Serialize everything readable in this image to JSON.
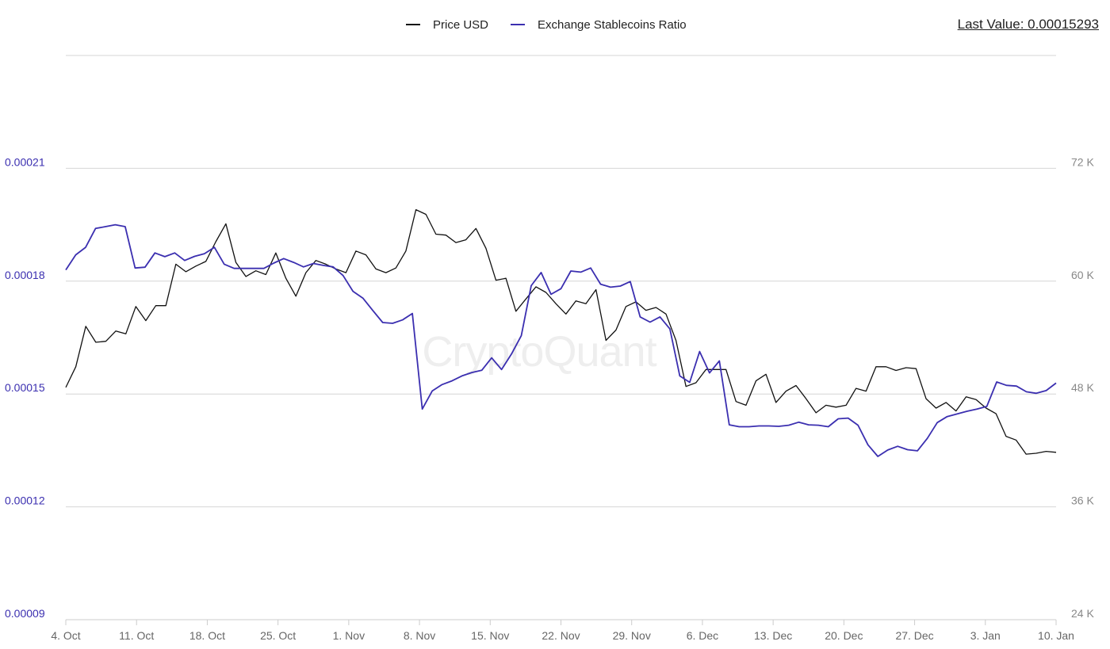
{
  "legend": {
    "price_label": "Price USD",
    "ratio_label": "Exchange Stablecoins Ratio"
  },
  "last_value": {
    "prefix": "Last Value: ",
    "value": "0.00015293"
  },
  "watermark": "CryptoQuant",
  "colors": {
    "price": "#111111",
    "ratio": "#3b2fb0",
    "left_axis_text": "#3b2fb0",
    "right_axis_text": "#888888",
    "grid": "#d6d6d6"
  },
  "chart_data": {
    "type": "line",
    "x_ticks": [
      "4. Oct",
      "11. Oct",
      "18. Oct",
      "25. Oct",
      "1. Nov",
      "8. Nov",
      "15. Nov",
      "22. Nov",
      "29. Nov",
      "6. Dec",
      "13. Dec",
      "20. Dec",
      "27. Dec",
      "3. Jan",
      "10. Jan"
    ],
    "y_left_ticks": [
      "0.00009",
      "0.00012",
      "0.00015",
      "0.00018",
      "0.00021"
    ],
    "y_left_range": [
      9e-05,
      0.00024
    ],
    "y_right_ticks": [
      "24 K",
      "36 K",
      "48 K",
      "60 K",
      "72 K"
    ],
    "y_right_range": [
      24000,
      84000
    ],
    "grid": true,
    "legend_position": "top-center",
    "x_start": "2021-10-04",
    "x_end": "2022-01-10",
    "series": [
      {
        "name": "Price USD",
        "axis": "right",
        "values": [
          48700,
          50900,
          55200,
          53500,
          53600,
          54700,
          54400,
          57300,
          55800,
          57400,
          57400,
          61800,
          61000,
          61600,
          62100,
          64200,
          66100,
          62000,
          60500,
          61100,
          60700,
          63000,
          60300,
          58400,
          60900,
          62200,
          61800,
          61300,
          60900,
          63200,
          62800,
          61300,
          60900,
          61400,
          63200,
          67600,
          67100,
          65000,
          64900,
          64100,
          64400,
          65600,
          63500,
          60100,
          60300,
          56800,
          58100,
          59400,
          58800,
          57600,
          56500,
          57900,
          57600,
          59100,
          53700,
          54800,
          57300,
          57800,
          56900,
          57200,
          56500,
          53700,
          48800,
          49200,
          50600,
          50600,
          50600,
          47200,
          46800,
          49400,
          50100,
          47100,
          48300,
          48900,
          47500,
          46000,
          46800,
          46600,
          46800,
          48600,
          48300,
          50900,
          50900,
          50500,
          50800,
          50700,
          47500,
          46500,
          47100,
          46200,
          47700,
          47400,
          46500,
          45900,
          43500,
          43100,
          41600,
          41700,
          41900,
          41800
        ]
      },
      {
        "name": "Exchange Stablecoins Ratio",
        "axis": "left",
        "values": [
          0.000183,
          0.000187,
          0.000189,
          0.000194,
          0.0001945,
          0.000195,
          0.0001945,
          0.0001835,
          0.0001837,
          0.0001875,
          0.0001865,
          0.0001875,
          0.0001855,
          0.0001866,
          0.0001873,
          0.000189,
          0.0001845,
          0.0001834,
          0.0001834,
          0.0001834,
          0.0001834,
          0.0001848,
          0.000186,
          0.000185,
          0.0001838,
          0.0001847,
          0.0001842,
          0.0001838,
          0.0001815,
          0.0001773,
          0.0001755,
          0.0001722,
          0.000169,
          0.0001688,
          0.0001697,
          0.0001714,
          0.000146,
          0.0001508,
          0.0001525,
          0.0001535,
          0.0001548,
          0.0001557,
          0.0001563,
          0.0001596,
          0.0001565,
          0.0001606,
          0.0001655,
          0.0001788,
          0.0001823,
          0.0001765,
          0.000178,
          0.0001827,
          0.0001824,
          0.0001835,
          0.0001792,
          0.0001784,
          0.0001787,
          0.0001799,
          0.0001705,
          0.0001691,
          0.0001705,
          0.0001673,
          0.0001548,
          0.0001531,
          0.0001613,
          0.0001556,
          0.0001588,
          0.0001418,
          0.0001413,
          0.0001413,
          0.0001415,
          0.0001415,
          0.0001414,
          0.0001417,
          0.0001425,
          0.0001418,
          0.0001417,
          0.0001413,
          0.0001434,
          0.0001436,
          0.0001417,
          0.0001365,
          0.0001334,
          0.0001351,
          0.0001361,
          0.0001352,
          0.0001349,
          0.0001382,
          0.0001424,
          0.000144,
          0.0001447,
          0.0001454,
          0.000146,
          0.0001467,
          0.0001532,
          0.0001523,
          0.0001521,
          0.0001506,
          0.0001502,
          0.0001509,
          0.0001529
        ]
      }
    ]
  }
}
